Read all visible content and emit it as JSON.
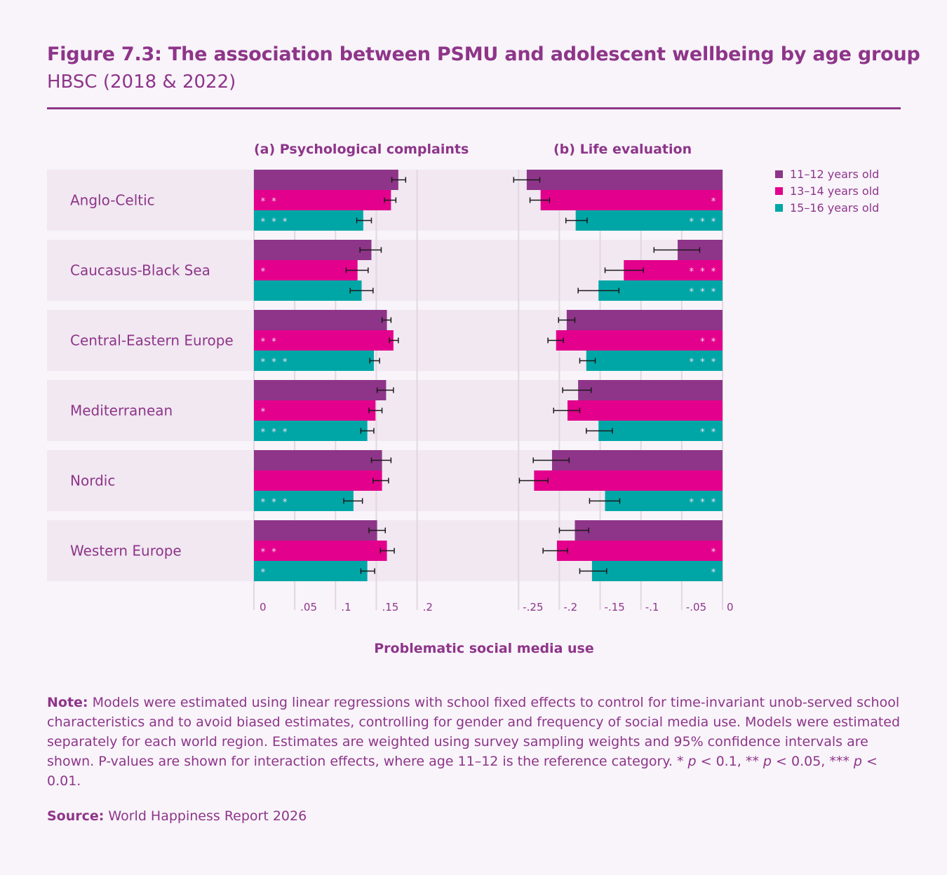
{
  "header": {
    "title": "Figure 7.3: The association between PSMU and adolescent wellbeing by age group",
    "subtitle": "HBSC (2018 & 2022)"
  },
  "colors": {
    "text": "#8e3589",
    "band": "#f1e8f1",
    "grid": "#e3d6e2",
    "series": [
      "#8e3589",
      "#e3008c",
      "#00a6a6"
    ]
  },
  "chart_data": [
    {
      "type": "bar",
      "orientation": "horizontal",
      "title": "(a) Psychological complaints",
      "xlabel": "Problematic social media use",
      "xlim": [
        0,
        0.2
      ],
      "ticks": [
        0,
        0.05,
        0.1,
        0.15,
        0.2
      ],
      "tick_labels": [
        "0",
        ".05",
        ".1",
        ".15",
        ".2"
      ],
      "categories": [
        "Anglo-Celtic",
        "Caucasus-Black Sea",
        "Central-Eastern Europe",
        "Mediterranean",
        "Nordic",
        "Western Europe"
      ],
      "series": [
        {
          "name": "11–12 years old",
          "values": [
            0.177,
            0.144,
            0.163,
            0.162,
            0.157,
            0.151
          ],
          "ci_low": [
            0.169,
            0.13,
            0.157,
            0.151,
            0.144,
            0.141
          ],
          "ci_high": [
            0.186,
            0.156,
            0.168,
            0.171,
            0.168,
            0.161
          ],
          "stars": [
            "",
            "",
            "",
            "",
            "",
            ""
          ]
        },
        {
          "name": "13–14 years old",
          "values": [
            0.168,
            0.127,
            0.171,
            0.149,
            0.157,
            0.163
          ],
          "ci_low": [
            0.16,
            0.113,
            0.166,
            0.141,
            0.146,
            0.155
          ],
          "ci_high": [
            0.174,
            0.14,
            0.177,
            0.157,
            0.165,
            0.172
          ],
          "stars": [
            "**",
            "*",
            "**",
            "*",
            "",
            "**"
          ]
        },
        {
          "name": "15–16 years old",
          "values": [
            0.134,
            0.132,
            0.147,
            0.139,
            0.122,
            0.139
          ],
          "ci_low": [
            0.126,
            0.118,
            0.142,
            0.131,
            0.11,
            0.131
          ],
          "ci_high": [
            0.144,
            0.146,
            0.154,
            0.147,
            0.133,
            0.148
          ],
          "stars": [
            "***",
            "",
            "***",
            "***",
            "***",
            "*"
          ]
        }
      ]
    },
    {
      "type": "bar",
      "orientation": "horizontal",
      "title": "(b) Life evaluation",
      "xlabel": "Problematic social media use",
      "xlim": [
        -0.25,
        0
      ],
      "ticks": [
        -0.25,
        -0.2,
        -0.15,
        -0.1,
        -0.05,
        0
      ],
      "tick_labels": [
        "-.25",
        "-.2",
        "-.15",
        "-.1",
        "-.05",
        "0"
      ],
      "categories": [
        "Anglo-Celtic",
        "Caucasus-Black Sea",
        "Central-Eastern Europe",
        "Mediterranean",
        "Nordic",
        "Western Europe"
      ],
      "series": [
        {
          "name": "11–12 years old",
          "values": [
            -0.24,
            -0.055,
            -0.191,
            -0.177,
            -0.209,
            -0.181
          ],
          "ci_low": [
            -0.256,
            -0.084,
            -0.201,
            -0.196,
            -0.232,
            -0.2
          ],
          "ci_high": [
            -0.224,
            -0.028,
            -0.181,
            -0.161,
            -0.188,
            -0.164
          ],
          "stars": [
            "",
            "",
            "",
            "",
            "",
            ""
          ]
        },
        {
          "name": "13–14 years old",
          "values": [
            -0.223,
            -0.121,
            -0.204,
            -0.19,
            -0.231,
            -0.203
          ],
          "ci_low": [
            -0.236,
            -0.144,
            -0.214,
            -0.207,
            -0.249,
            -0.22
          ],
          "ci_high": [
            -0.212,
            -0.097,
            -0.195,
            -0.175,
            -0.214,
            -0.19
          ],
          "stars": [
            "*",
            "***",
            "**",
            "",
            "",
            "*"
          ]
        },
        {
          "name": "15–16 years old",
          "values": [
            -0.18,
            -0.152,
            -0.167,
            -0.152,
            -0.144,
            -0.16
          ],
          "ci_low": [
            -0.192,
            -0.177,
            -0.175,
            -0.167,
            -0.163,
            -0.175
          ],
          "ci_high": [
            -0.166,
            -0.127,
            -0.156,
            -0.135,
            -0.126,
            -0.142
          ],
          "stars": [
            "***",
            "***",
            "***",
            "**",
            "***",
            "*"
          ]
        }
      ]
    }
  ],
  "shared_xlabel": "Problematic social media use",
  "legend": {
    "position": "top-right",
    "items": [
      "11–12 years old",
      "13–14 years old",
      "15–16 years old"
    ]
  },
  "note": {
    "label": "Note:",
    "text_1": " Models were estimated using linear regressions with school fixed effects to control for time-invariant unob-served school characteristics and to avoid biased estimates, controlling for gender and frequency of social media use. Models were estimated separately for each world region. Estimates are weighted using survey sampling weights and 95% confidence intervals are shown. P-values are shown for interaction effects, where age 11–12 is the reference category. * ",
    "p1": "p",
    "text_2": " < 0.1, ** ",
    "p2": "p",
    "text_3": " < 0.05, *** ",
    "p3": "p",
    "text_4": " < 0.01."
  },
  "source": {
    "label": "Source:",
    "text": " World Happiness Report 2026"
  }
}
